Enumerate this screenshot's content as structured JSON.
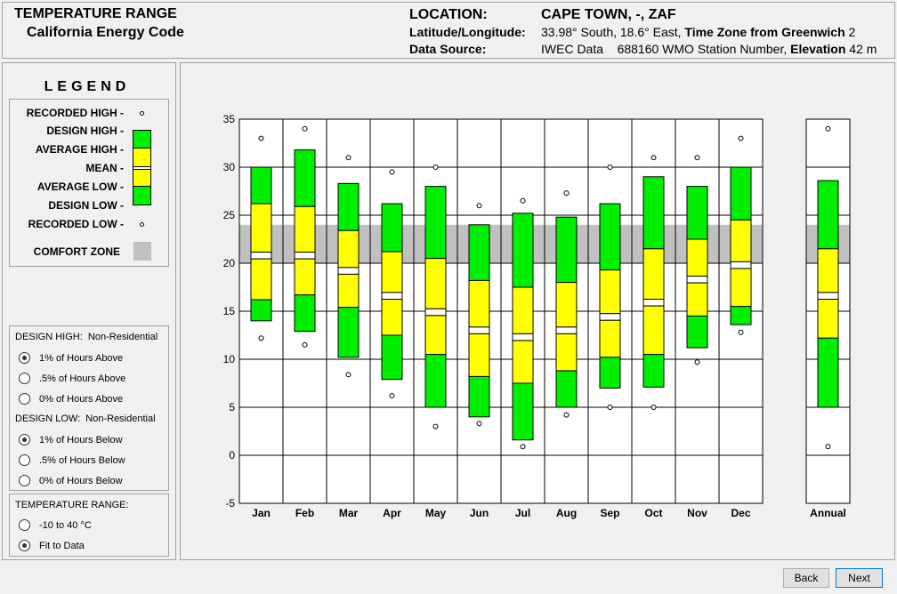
{
  "header": {
    "title": "TEMPERATURE RANGE",
    "subtitle": "California Energy Code",
    "location_label": "LOCATION:",
    "location_value": "CAPE TOWN, -, ZAF",
    "latlon_label": "Latitude/Longitude:",
    "latlon_value": "33.98° South, 18.6° East,",
    "tz_label": "Time Zone from Greenwich",
    "tz_value": "2",
    "source_label": "Data Source:",
    "source_value": "IWEC Data",
    "station_value": "688160 WMO Station Number,",
    "elev_label": "Elevation",
    "elev_value": "42 m"
  },
  "legend": {
    "title": "LEGEND",
    "recorded_high": "RECORDED HIGH -",
    "design_high": "DESIGN HIGH -",
    "average_high": "AVERAGE HIGH -",
    "mean": "MEAN -",
    "average_low": "AVERAGE LOW -",
    "design_low": "DESIGN LOW -",
    "recorded_low": "RECORDED LOW -",
    "comfort_zone": "COMFORT ZONE"
  },
  "design_high_options": {
    "heading_bold": "DESIGN HIGH:",
    "heading_rest": "Non-Residential",
    "options": [
      "1% of Hours Above",
      ".5% of Hours Above",
      "0% of Hours Above"
    ],
    "selected": 0
  },
  "design_low_options": {
    "heading_bold": "DESIGN LOW:",
    "heading_rest": "Non-Residential",
    "options": [
      "1% of Hours Below",
      ".5% of Hours Below",
      "0% of Hours Below"
    ],
    "selected": 0
  },
  "temp_range_options": {
    "heading": "TEMPERATURE RANGE:",
    "options": [
      "-10 to 40 °C",
      "Fit to Data"
    ],
    "selected": 1
  },
  "buttons": {
    "back": "Back",
    "next": "Next"
  },
  "colors": {
    "design": "#00ee00",
    "average": "#ffff00",
    "comfort": "#c0c0c0",
    "grid": "#000000"
  },
  "chart_data": {
    "type": "box-range",
    "ylim": [
      -5,
      35
    ],
    "yticks": [
      "35",
      "30",
      "25",
      "20",
      "15",
      "10",
      "5",
      "0",
      "-5"
    ],
    "comfort_zone": [
      20,
      24
    ],
    "categories": [
      "Jan",
      "Feb",
      "Mar",
      "Apr",
      "May",
      "Jun",
      "Jul",
      "Aug",
      "Sep",
      "Oct",
      "Nov",
      "Dec"
    ],
    "recorded_high": [
      33,
      34,
      31,
      29.5,
      30,
      26,
      26.5,
      27.3,
      30,
      31,
      31,
      33
    ],
    "design_high": [
      30,
      31.8,
      28.3,
      26.2,
      28,
      24,
      25.2,
      24.8,
      26.2,
      29,
      28,
      30
    ],
    "average_high": [
      26.2,
      25.9,
      23.4,
      21.2,
      20.5,
      18.2,
      17.5,
      18,
      19.3,
      21.5,
      22.5,
      24.5
    ],
    "mean": [
      20.8,
      20.8,
      19.2,
      16.6,
      14.9,
      13,
      12.3,
      13,
      14.4,
      15.9,
      18.3,
      19.8
    ],
    "average_low": [
      16.2,
      16.7,
      15.4,
      12.5,
      10.5,
      8.2,
      7.5,
      8.8,
      10.2,
      10.5,
      14.5,
      15.5
    ],
    "design_low": [
      14,
      12.9,
      10.2,
      7.9,
      5,
      4,
      1.6,
      5,
      7,
      7.1,
      11.2,
      13.6
    ],
    "recorded_low": [
      12.2,
      11.5,
      8.4,
      6.2,
      3,
      3.3,
      0.9,
      4.2,
      5,
      5,
      9.7,
      12.8
    ],
    "annual": {
      "label": "Annual",
      "recorded_high": 34,
      "design_high": 28.6,
      "average_high": 21.5,
      "mean": 16.6,
      "average_low": 12.2,
      "design_low": 5,
      "recorded_low": 0.9
    }
  }
}
